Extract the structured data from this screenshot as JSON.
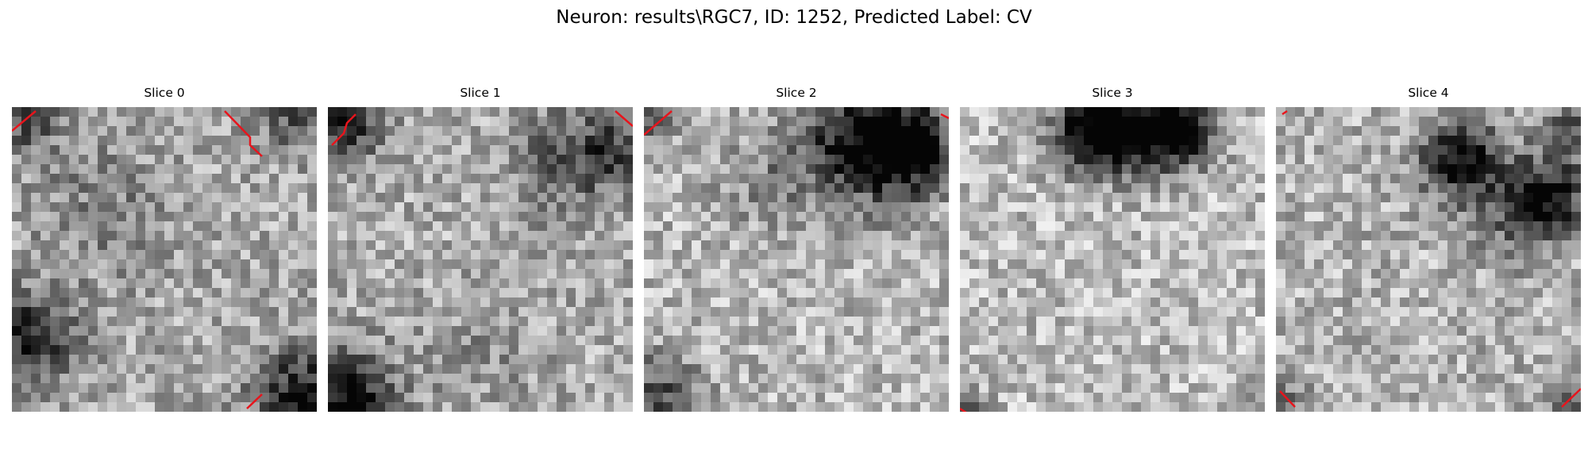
{
  "figure": {
    "title": "Neuron: results\\RGC7, ID: 1252, Predicted Label: CV",
    "grid": "off",
    "colormap": "gray",
    "contour_color": "#e8141c"
  },
  "slices": [
    {
      "label": "Slice 0"
    },
    {
      "label": "Slice 1"
    },
    {
      "label": "Slice 2"
    },
    {
      "label": "Slice 3"
    },
    {
      "label": "Slice 4"
    }
  ]
}
